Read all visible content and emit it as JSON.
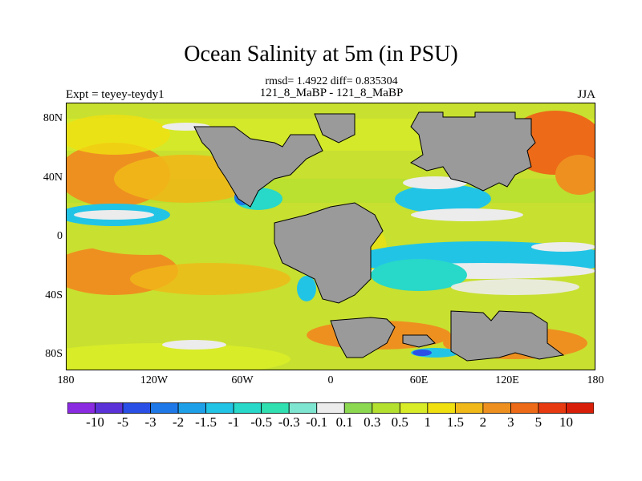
{
  "figure": {
    "title": "Ocean Salinity at 5m (in PSU)",
    "stats": "rmsd= 1.4922 diff= 0.835304",
    "left_label": "Expt = teyey-teydy1",
    "center_label": "121_8_MaBP - 121_8_MaBP",
    "right_label": "JJA"
  },
  "axes": {
    "y_ticks": [
      "80N",
      "40N",
      "0",
      "40S",
      "80S"
    ],
    "x_ticks": [
      "180",
      "120W",
      "60W",
      "0",
      "60E",
      "120E",
      "180"
    ]
  },
  "colorbar": {
    "labels": [
      "-10",
      "-5",
      "-3",
      "-2",
      "-1.5",
      "-1",
      "-0.5",
      "-0.3",
      "-0.1",
      "0.1",
      "0.3",
      "0.5",
      "1",
      "1.5",
      "2",
      "3",
      "5",
      "10"
    ],
    "colors": [
      "#8a2be2",
      "#5a32d8",
      "#2a4fe6",
      "#1f78e8",
      "#1ea0e8",
      "#22c4e6",
      "#28d8c8",
      "#30e0b0",
      "#7ee6d0",
      "#ececec",
      "#8cd850",
      "#b4e030",
      "#d8ec28",
      "#f0e010",
      "#f0b818",
      "#ee9020",
      "#ec6a18",
      "#e83a10",
      "#d81e08"
    ]
  },
  "map": {
    "ocean_color": "#c8e030",
    "land_color": "#9a9a9a"
  }
}
